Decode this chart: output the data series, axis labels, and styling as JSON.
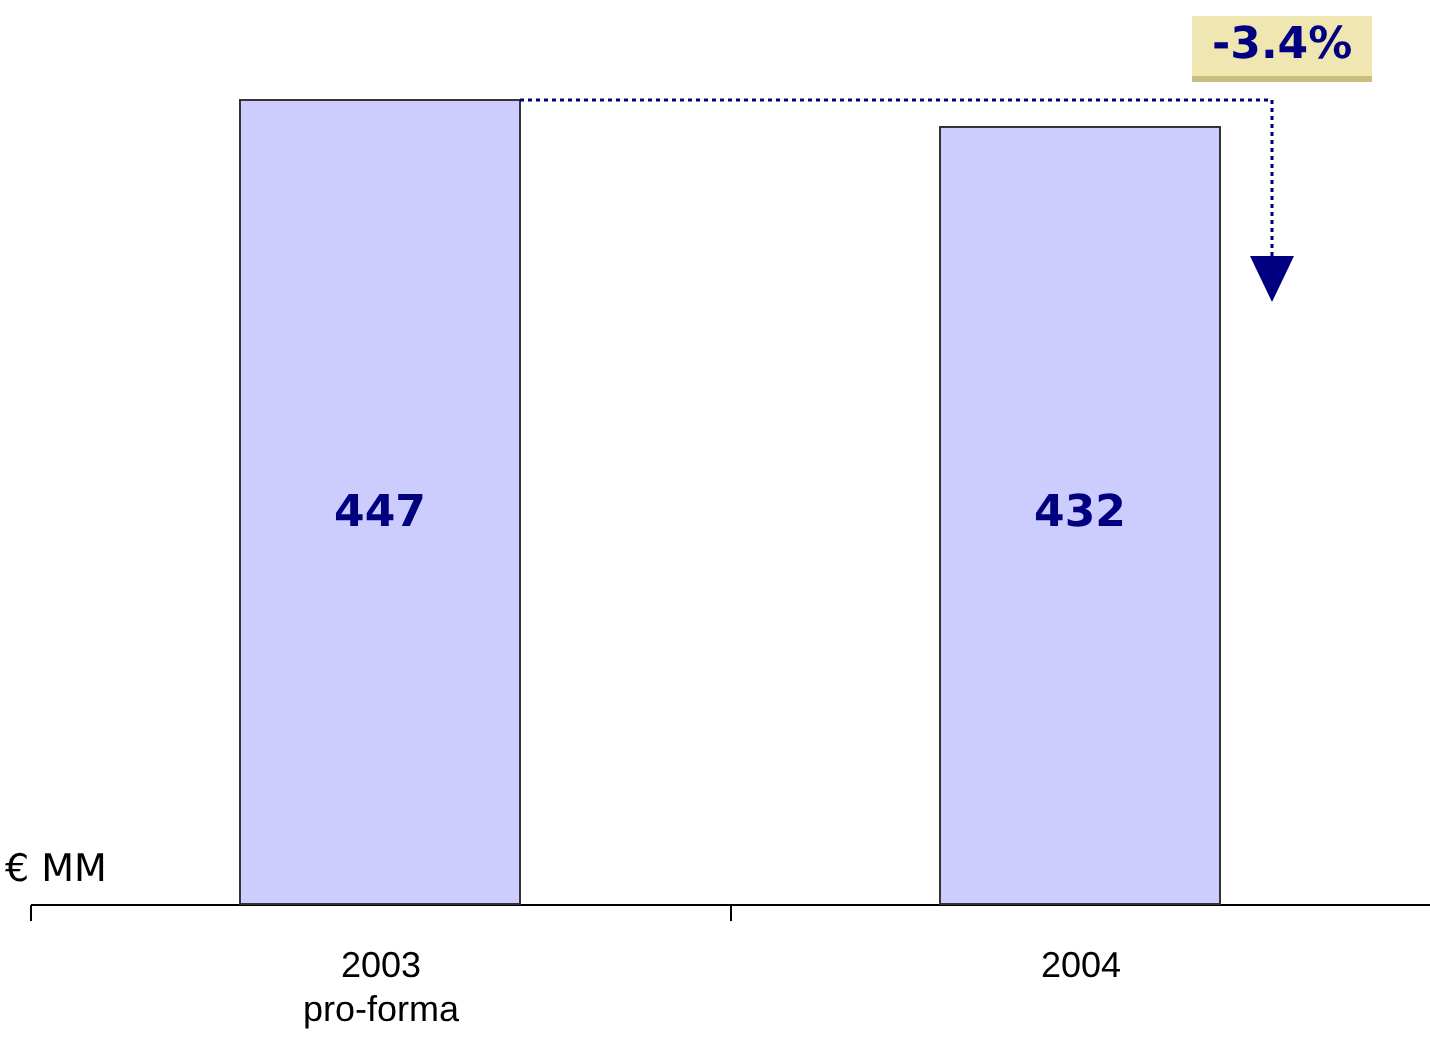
{
  "chart_data": {
    "type": "bar",
    "categories": [
      "2003\npro-forma",
      "2004"
    ],
    "values": [
      447,
      432
    ],
    "color": "#ccccff",
    "data_labels": true,
    "ylabel": "€ MM",
    "annotations": [
      "-3.4%"
    ]
  }
}
